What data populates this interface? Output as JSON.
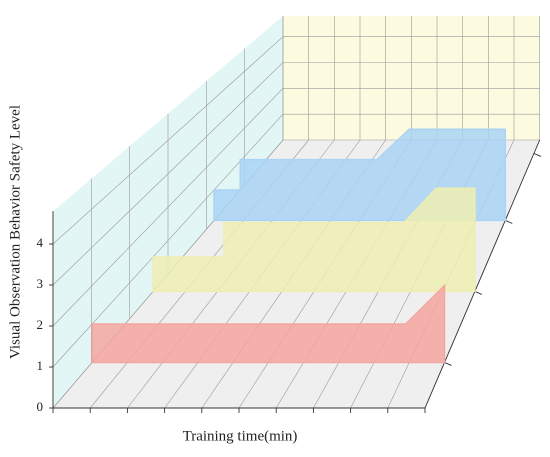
{
  "chart_data": {
    "type": "wall3d",
    "y_label": "Visual Observation Behavior Safety Level",
    "x_label": "Training time(min)",
    "xlim": [
      0,
      10
    ],
    "ylim": [
      0,
      4.8
    ],
    "yticks": [
      0,
      1,
      2,
      3,
      4
    ],
    "grid": true,
    "series": [
      {
        "color": "#f4a6a0",
        "x": [
          0,
          8.9,
          10
        ],
        "values": [
          1,
          1,
          2
        ]
      },
      {
        "color": "#eeeeb2",
        "x": [
          0,
          2.2,
          2.2,
          7.8,
          8.8,
          10
        ],
        "values": [
          1,
          1,
          2,
          2,
          3,
          3
        ]
      },
      {
        "color": "#a9d3f4",
        "x": [
          0,
          0.9,
          0.9,
          5.6,
          6.7,
          10
        ],
        "values": [
          1,
          1,
          2,
          2,
          3,
          3
        ]
      }
    ]
  }
}
